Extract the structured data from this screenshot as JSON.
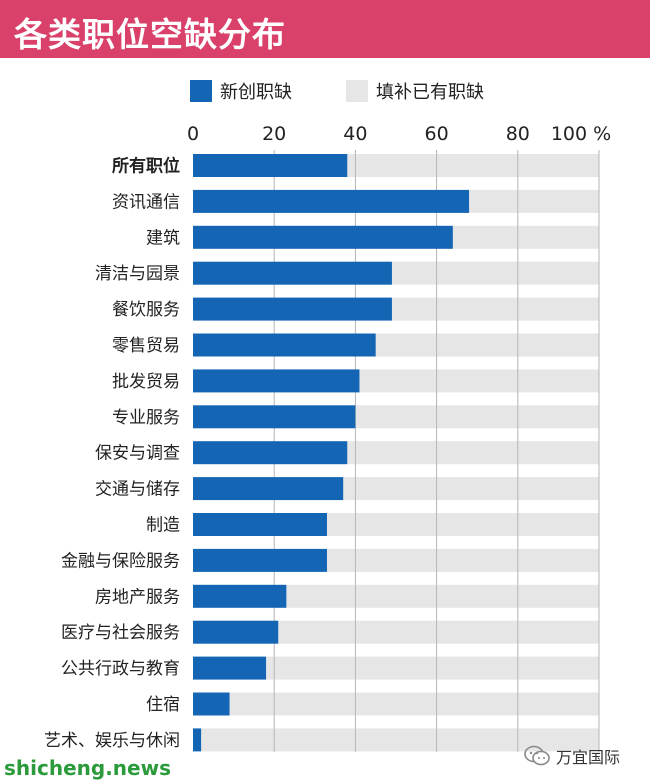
{
  "title": "各类职位空缺分布",
  "legend": {
    "new_label": "新创职缺",
    "existing_label": "填补已有职缺"
  },
  "colors": {
    "title_bg": "#d9416a",
    "new": "#1466b4",
    "existing": "#e6e6e6"
  },
  "watermarks": {
    "left": "shicheng.news",
    "right": "万宜国际",
    "right_icon": "wechat-icon"
  },
  "chart_data": {
    "type": "bar",
    "orientation": "horizontal",
    "stacked": true,
    "xlim": [
      0,
      100
    ],
    "ticks": [
      "0",
      "20",
      "40",
      "60",
      "80",
      "100 %"
    ],
    "tick_values": [
      0,
      20,
      40,
      60,
      80,
      100
    ],
    "grid": true,
    "legend_position": "top",
    "categories": [
      "所有职位",
      "资讯通信",
      "建筑",
      "清洁与园景",
      "餐饮服务",
      "零售贸易",
      "批发贸易",
      "专业服务",
      "保安与调查",
      "交通与储存",
      "制造",
      "金融与保险服务",
      "房地产服务",
      "医疗与社会服务",
      "公共行政与教育",
      "住宿",
      "艺术、娱乐与休闲"
    ],
    "series": [
      {
        "name": "新创职缺",
        "values": [
          38,
          68,
          64,
          49,
          49,
          45,
          41,
          40,
          38,
          37,
          33,
          33,
          23,
          21,
          18,
          9,
          2
        ]
      },
      {
        "name": "填补已有职缺",
        "values": [
          62,
          32,
          36,
          51,
          51,
          55,
          59,
          60,
          62,
          63,
          67,
          67,
          77,
          79,
          82,
          91,
          98
        ]
      }
    ]
  }
}
